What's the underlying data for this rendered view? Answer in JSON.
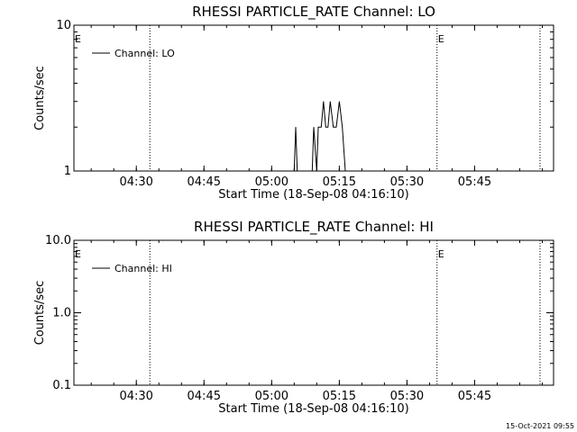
{
  "chart_data": [
    {
      "type": "line",
      "title": "RHESSI PARTICLE_RATE Channel: LO",
      "xlabel": "Start Time (18-Sep-08 04:16:10)",
      "ylabel": "Counts/sec",
      "yscale": "log",
      "ylim": [
        1,
        10
      ],
      "yticks": [
        {
          "value": 1,
          "label": "1"
        },
        {
          "value": 10,
          "label": "10"
        }
      ],
      "xlim": [
        "04:16:10",
        "06:02:30"
      ],
      "xticks": [
        "04:30",
        "04:45",
        "05:00",
        "05:15",
        "05:30",
        "05:45"
      ],
      "vlines": [
        "04:33:00",
        "05:36:40",
        "05:59:30"
      ],
      "markers": [
        {
          "x": "04:16:10",
          "label": "E"
        },
        {
          "x": "05:36:40",
          "label": "E"
        }
      ],
      "legend": {
        "label": "Channel: LO",
        "position": "top-left"
      },
      "series": [
        {
          "name": "Channel: LO",
          "points": [
            [
              "05:05:00",
              1
            ],
            [
              "05:05:20",
              2
            ],
            [
              "05:05:40",
              1
            ],
            [
              "05:09:00",
              1
            ],
            [
              "05:09:20",
              2
            ],
            [
              "05:10:00",
              1
            ],
            [
              "05:10:20",
              2
            ],
            [
              "05:11:00",
              2
            ],
            [
              "05:11:30",
              3
            ],
            [
              "05:12:00",
              2
            ],
            [
              "05:12:30",
              2
            ],
            [
              "05:13:00",
              3
            ],
            [
              "05:13:40",
              2
            ],
            [
              "05:14:20",
              2
            ],
            [
              "05:15:00",
              3
            ],
            [
              "05:15:40",
              2
            ],
            [
              "05:16:20",
              1
            ]
          ]
        }
      ]
    },
    {
      "type": "line",
      "title": "RHESSI PARTICLE_RATE Channel: HI",
      "xlabel": "Start Time (18-Sep-08 04:16:10)",
      "ylabel": "Counts/sec",
      "yscale": "log",
      "ylim": [
        0.1,
        10
      ],
      "yticks": [
        {
          "value": 0.1,
          "label": "0.1"
        },
        {
          "value": 1,
          "label": "1.0"
        },
        {
          "value": 10,
          "label": "10.0"
        }
      ],
      "xlim": [
        "04:16:10",
        "06:02:30"
      ],
      "xticks": [
        "04:30",
        "04:45",
        "05:00",
        "05:15",
        "05:30",
        "05:45"
      ],
      "vlines": [
        "04:33:00",
        "05:36:40",
        "05:59:30"
      ],
      "markers": [
        {
          "x": "04:16:10",
          "label": "E"
        },
        {
          "x": "05:36:40",
          "label": "E"
        }
      ],
      "legend": {
        "label": "Channel: HI",
        "position": "top-left"
      },
      "series": [
        {
          "name": "Channel: HI",
          "points": []
        }
      ]
    }
  ],
  "footer": {
    "timestamp": "15-Oct-2021 09:55"
  }
}
